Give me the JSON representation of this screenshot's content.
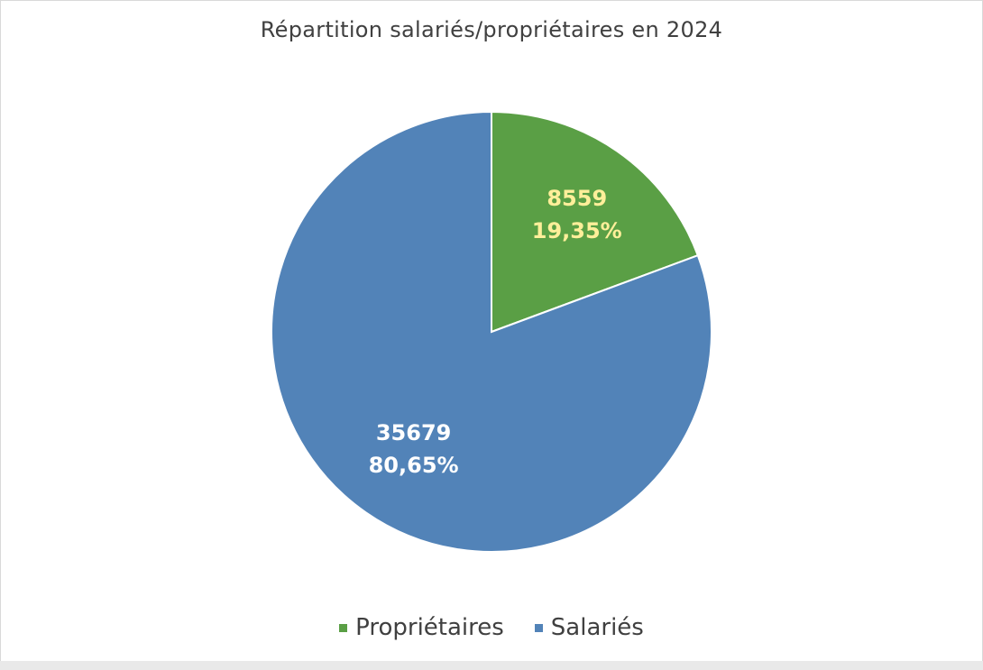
{
  "chart_data": {
    "type": "pie",
    "title": "Répartition salariés/propriétaires en 2024",
    "categories": [
      "Propriétaires",
      "Salariés"
    ],
    "values": [
      8559,
      35679
    ],
    "percent_labels": [
      "19,35%",
      "80,65%"
    ],
    "colors": [
      "#5a9f45",
      "#5283b8"
    ],
    "label_colors": [
      "#ffef9a",
      "#ffffff"
    ],
    "legend_position": "bottom",
    "start_angle_deg": 0,
    "direction": "clockwise"
  }
}
